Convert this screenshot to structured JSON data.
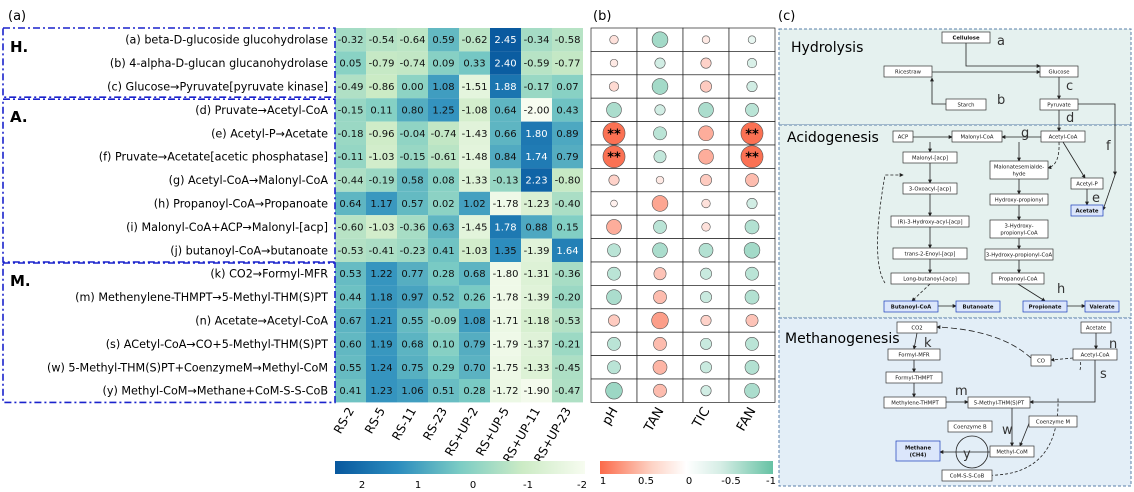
{
  "panels": {
    "a": "(a)",
    "b": "(b)",
    "c": "(c)"
  },
  "groups": [
    {
      "label": "H.",
      "rows": [
        0,
        2
      ]
    },
    {
      "label": "A.",
      "rows": [
        3,
        9
      ]
    },
    {
      "label": "M.",
      "rows": [
        10,
        15
      ]
    }
  ],
  "chart_data": [
    {
      "type": "heatmap",
      "title": "",
      "rows": [
        "(a) beta-D-glucoside glucohydrolase",
        "(b) 4-alpha-D-glucan glucanohydrolase",
        "(c) Glucose→Pyruvate[pyruvate kinase]",
        "(d) Pruvate→Acetyl-CoA",
        "(e) Acetyl-P→Acetate",
        "(f) Pruvate→Acetate[acetic phosphatase]",
        "(g) Acetyl-CoA→Malonyl-CoA",
        "(h) Propanoyl-CoA→Propanoate",
        "(i) Malonyl-CoA+ACP→Malonyl-[acp]",
        "(j) butanoyl-CoA→butanoate",
        "(k) CO2→Formyl-MFR",
        "(m) Methenylene-THMPT→5-Methyl-THM(S)PT",
        "(n) Acetate→Acetyl-CoA",
        "(s) ACetyl-CoA→CO+5-Methyl-THM(S)PT",
        "(w) 5-Methyl-THM(S)PT+CoenzymeM→Methyl-CoM",
        "(y) Methyl-CoM→Methane+CoM-S-S-CoB"
      ],
      "columns": [
        "RS-2",
        "RS-5",
        "RS-11",
        "RS-23",
        "RS+UP-2",
        "RS+UP-5",
        "RS+UP-11",
        "RS+UP-23"
      ],
      "values": [
        [
          "-0.32",
          "-0.54",
          "-0.64",
          "0.59",
          "-0.62",
          "2.45",
          "-0.34",
          "-0.58"
        ],
        [
          "0.05",
          "-0.79",
          "-0.74",
          "0.09",
          "0.33",
          "2.40",
          "-0.59",
          "-0.77"
        ],
        [
          "-0.49",
          "-0.86",
          "0.00",
          "1.08",
          "-1.51",
          "1.88",
          "-0.17",
          "0.07"
        ],
        [
          "-0.15",
          "0.11",
          "0.80",
          "1.25",
          "-1.08",
          "0.64",
          "-2.00",
          "0.43"
        ],
        [
          "-0.18",
          "-0.96",
          "-0.04",
          "-0.74",
          "-1.43",
          "0.66",
          "1.80",
          "0.89"
        ],
        [
          "-0.11",
          "-1.03",
          "-0.15",
          "-0.61",
          "-1.48",
          "0.84",
          "1.74",
          "0.79"
        ],
        [
          "-0.44",
          "-0.19",
          "0.58",
          "0.08",
          "-1.33",
          "-0.13",
          "2.23",
          "-0.80"
        ],
        [
          "0.64",
          "1.17",
          "0.57",
          "0.02",
          "1.02",
          "-1.78",
          "-1.23",
          "-0.40"
        ],
        [
          "-0.60",
          "-1.03",
          "-0.36",
          "0.63",
          "-1.45",
          "1.78",
          "0.88",
          "0.15"
        ],
        [
          "-0.53",
          "-0.41",
          "-0.23",
          "0.41",
          "-1.03",
          "1.35",
          "-1.39",
          "1.64"
        ],
        [
          "0.53",
          "1.22",
          "0.77",
          "0.28",
          "0.68",
          "-1.80",
          "-1.31",
          "-0.36"
        ],
        [
          "0.44",
          "1.18",
          "0.97",
          "0.52",
          "0.26",
          "-1.78",
          "-1.39",
          "-0.20"
        ],
        [
          "0.67",
          "1.21",
          "0.55",
          "-0.09",
          "1.08",
          "-1.71",
          "-1.18",
          "-0.53"
        ],
        [
          "0.60",
          "1.19",
          "0.68",
          "0.10",
          "0.79",
          "-1.79",
          "-1.37",
          "-0.21"
        ],
        [
          "0.55",
          "1.24",
          "0.75",
          "0.29",
          "0.70",
          "-1.75",
          "-1.33",
          "-0.45"
        ],
        [
          "0.41",
          "1.23",
          "1.06",
          "0.51",
          "0.28",
          "-1.72",
          "-1.90",
          "-0.47"
        ]
      ],
      "colorbar": {
        "ticks": [
          "2",
          "1",
          "0",
          "-1",
          "-2"
        ],
        "range": [
          2.5,
          -2
        ],
        "low_color": "#f7fcf0",
        "high_color": "#08589e"
      }
    },
    {
      "type": "scatter",
      "title": "",
      "columns": [
        "pH",
        "TAN",
        "TIC",
        "FAN"
      ],
      "values": [
        [
          0.2,
          -0.6,
          0.15,
          -0.15
        ],
        [
          0.15,
          -0.3,
          0.3,
          -0.25
        ],
        [
          0.25,
          -0.6,
          0.35,
          -0.3
        ],
        [
          -0.55,
          -0.3,
          -0.55,
          -0.45
        ],
        [
          0.95,
          -0.45,
          0.55,
          0.95
        ],
        [
          0.95,
          -0.4,
          0.55,
          0.95
        ],
        [
          0.3,
          0.15,
          0.35,
          0.45
        ],
        [
          0.1,
          0.6,
          0.2,
          -0.3
        ],
        [
          0.55,
          -0.45,
          0.2,
          -0.5
        ],
        [
          -0.45,
          -0.55,
          -0.5,
          -0.6
        ],
        [
          -0.45,
          0.4,
          -0.35,
          -0.45
        ],
        [
          -0.55,
          0.45,
          -0.35,
          -0.5
        ],
        [
          0.35,
          0.65,
          0.3,
          0.4
        ],
        [
          -0.45,
          0.45,
          -0.35,
          -0.45
        ],
        [
          -0.45,
          0.5,
          -0.35,
          -0.5
        ],
        [
          -0.65,
          0.45,
          -0.3,
          -0.55
        ]
      ],
      "significance": [
        [
          "",
          "",
          "",
          ""
        ],
        [
          "",
          "",
          "",
          ""
        ],
        [
          "",
          "",
          "",
          ""
        ],
        [
          "",
          "",
          "",
          ""
        ],
        [
          "**",
          "",
          "",
          "**"
        ],
        [
          "**",
          "",
          "",
          "**"
        ],
        [
          "",
          "",
          "",
          ""
        ],
        [
          "",
          "",
          "",
          ""
        ],
        [
          "",
          "",
          "",
          ""
        ],
        [
          "",
          "",
          "",
          ""
        ],
        [
          "",
          "",
          "",
          ""
        ],
        [
          "",
          "",
          "",
          ""
        ],
        [
          "",
          "",
          "",
          ""
        ],
        [
          "",
          "",
          "",
          ""
        ],
        [
          "",
          "",
          "",
          ""
        ],
        [
          "",
          "",
          "",
          ""
        ]
      ],
      "colorbar": {
        "ticks": [
          "1",
          "0.5",
          "0",
          "-0.5",
          "-1"
        ],
        "range": [
          1,
          -1
        ],
        "positive_color": "#fb6a4a",
        "negative_color": "#66c2a4"
      }
    }
  ],
  "pathway": {
    "sections": [
      "Hydrolysis",
      "Acidogenesis",
      "Methanogenesis"
    ],
    "nodes": {
      "cellulose": "Cellulose",
      "ricestraw": "Ricestraw",
      "glucose": "Glucose",
      "starch": "Starch",
      "pyruvate": "Pyruvate",
      "acp": "ACP",
      "malonylcoa": "Malonyl-CoA",
      "acetylcoa1": "Acetyl-CoA",
      "malonylacp": "Malonyl-[acp]",
      "oxoacyl": "3-Oxoacyl-[acp]",
      "hydroxyacyl": "(R)-3-Hydroxy-acyl-[acp]",
      "transenoyl": "trans-2-Enoyl-[acp]",
      "longacyl": "Long-butanoyl-[acp]",
      "malonsemi": "Malonatesemialde-\nhyde",
      "hydroxyprop": "Hydroxy-propionyl",
      "hydroxypropcoa": "3-Hydroxy-\npropionyl-CoA",
      "hydroxypropcoa2": "3-Hydroxy-propionyl-CoA",
      "propanoylcoa": "Propanoyl-CoA",
      "acetylp": "Acetyl-P",
      "acetate1": "Acetate",
      "butanoylcoa": "Butanoyl-CoA",
      "butanoate": "Butanoate",
      "propionate": "Propionate",
      "valerate": "Valerate",
      "co2": "CO2",
      "formylmfr": "Formyl-MFR",
      "formylthmpt": "Formyl-THMPT",
      "methylenethmpt": "Methylene-THMPT",
      "methylthm": "5-Methyl-THM(S)PT",
      "acetate2": "Acetate",
      "acetylcoa2": "Acetyl-CoA",
      "co": "CO",
      "coenzymeb": "Coenzyme B",
      "coenzymem": "Coenzyme M",
      "methylcom": "Methyl-CoM",
      "methane": "Methane\n(CH4)",
      "comscob": "CoM-S-S-CoB"
    },
    "letters": [
      "a",
      "b",
      "c",
      "d",
      "e",
      "f",
      "g",
      "h",
      "k",
      "m",
      "n",
      "s",
      "w",
      "y"
    ]
  }
}
